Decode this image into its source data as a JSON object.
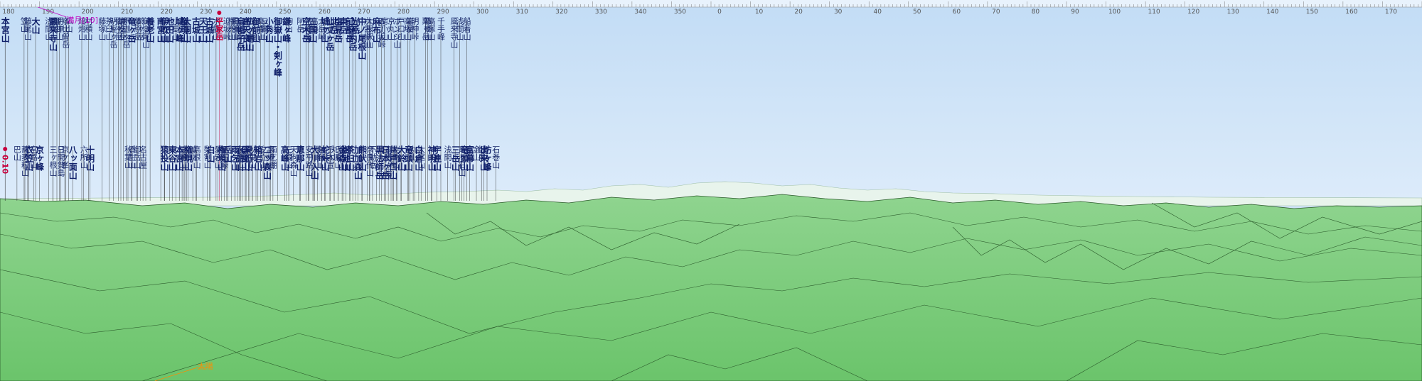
{
  "panorama": {
    "colors": {
      "sky_top": "#c2dcf5",
      "sky_bottom": "#dcebfa",
      "ground": "#6fc86f",
      "ground_far": "#a9ddb0",
      "ridge_line": "#2b5a2b",
      "leader_line": "#333333",
      "highlight": "#c8003c",
      "moon": "#c000c0",
      "sun": "#ff8a00"
    },
    "azimuth_ticks": [
      {
        "deg": 180,
        "label": "180"
      },
      {
        "deg": 190,
        "label": "190"
      },
      {
        "deg": 200,
        "label": "200"
      },
      {
        "deg": 210,
        "label": "210"
      },
      {
        "deg": 220,
        "label": "220"
      },
      {
        "deg": 230,
        "label": "230"
      },
      {
        "deg": 240,
        "label": "240"
      },
      {
        "deg": 250,
        "label": "250"
      },
      {
        "deg": 260,
        "label": "260"
      },
      {
        "deg": 270,
        "label": "270"
      },
      {
        "deg": 280,
        "label": "280"
      },
      {
        "deg": 290,
        "label": "290"
      },
      {
        "deg": 300,
        "label": "300"
      },
      {
        "deg": 310,
        "label": "310"
      },
      {
        "deg": 320,
        "label": "320"
      },
      {
        "deg": 330,
        "label": "330"
      },
      {
        "deg": 340,
        "label": "340"
      },
      {
        "deg": 350,
        "label": "350"
      },
      {
        "deg": 360,
        "label": "0"
      },
      {
        "deg": 370,
        "label": "10"
      },
      {
        "deg": 380,
        "label": "20"
      },
      {
        "deg": 390,
        "label": "30"
      },
      {
        "deg": 400,
        "label": "40"
      },
      {
        "deg": 410,
        "label": "50"
      },
      {
        "deg": 420,
        "label": "60"
      },
      {
        "deg": 430,
        "label": "70"
      },
      {
        "deg": 440,
        "label": "80"
      },
      {
        "deg": 450,
        "label": "90"
      },
      {
        "deg": 460,
        "label": "100"
      },
      {
        "deg": 470,
        "label": "110"
      },
      {
        "deg": 480,
        "label": "120"
      },
      {
        "deg": 490,
        "label": "130"
      },
      {
        "deg": 500,
        "label": "140"
      },
      {
        "deg": 510,
        "label": "150"
      },
      {
        "deg": 520,
        "label": "160"
      },
      {
        "deg": 530,
        "label": "170"
      }
    ],
    "peaks": [
      {
        "name": "本宮山",
        "deg": 181.3,
        "row": 0,
        "major": true
      },
      {
        "name": "巴山",
        "deg": 184.3,
        "row": 2
      },
      {
        "name": "笠山",
        "deg": 186.1,
        "row": 0
      },
      {
        "name": "藤尾山",
        "deg": 187.0,
        "row": 0
      },
      {
        "name": "蕎麦粒山",
        "deg": 186.3,
        "row": 2
      },
      {
        "name": "衣笠山",
        "deg": 187.3,
        "row": 2,
        "major": true
      },
      {
        "name": "宮路山",
        "deg": 188.5,
        "row": 2
      },
      {
        "name": "大山",
        "deg": 189.0,
        "row": 0,
        "major": true
      },
      {
        "name": "京ヶ峰",
        "deg": 190.0,
        "row": 2,
        "major": true
      },
      {
        "name": "浅間山",
        "deg": 192.3,
        "row": 0
      },
      {
        "name": "鳳来寺山",
        "deg": 193.4,
        "row": 0,
        "major": true
      },
      {
        "name": "三ヶ根山",
        "deg": 193.4,
        "row": 2
      },
      {
        "name": "棚山",
        "deg": 194.4,
        "row": 0
      },
      {
        "name": "明神山",
        "deg": 195.0,
        "row": 0
      },
      {
        "name": "日間賀島",
        "deg": 195.4,
        "row": 2
      },
      {
        "name": "京ヶ峯",
        "deg": 196.4,
        "row": 2
      },
      {
        "name": "寧比曽岳",
        "deg": 196.6,
        "row": 0
      },
      {
        "name": "仏山",
        "deg": 197.4,
        "row": 0
      },
      {
        "name": "八ッ面山",
        "deg": 198.4,
        "row": 2,
        "major": true
      },
      {
        "name": "焙烙山",
        "deg": 200.7,
        "row": 0
      },
      {
        "name": "六所山",
        "deg": 201.2,
        "row": 2
      },
      {
        "name": "村積山",
        "deg": 202.4,
        "row": 0
      },
      {
        "name": "十明山",
        "deg": 202.8,
        "row": 2,
        "major": true
      },
      {
        "name": "藤塚山",
        "deg": 205.8,
        "row": 0
      },
      {
        "name": "茶臼山",
        "deg": 207.6,
        "row": 0
      },
      {
        "name": "明屋ヶ岳",
        "deg": 208.7,
        "row": 0
      },
      {
        "name": "仙ヶ岳",
        "deg": 210.0,
        "row": 0
      },
      {
        "name": "猿投山",
        "deg": 210.6,
        "row": 0
      },
      {
        "name": "雨乞岳",
        "deg": 211.2,
        "row": 0
      },
      {
        "name": "釈迦ヶ岳",
        "deg": 212.0,
        "row": 0
      },
      {
        "name": "竜ヶ岳",
        "deg": 213.3,
        "row": 0,
        "major": true
      },
      {
        "name": "秋葉山",
        "deg": 212.4,
        "row": 2
      },
      {
        "name": "香生山",
        "deg": 213.4,
        "row": 2
      },
      {
        "name": "藤原岳",
        "deg": 214.8,
        "row": 0
      },
      {
        "name": "御岳山",
        "deg": 214.6,
        "row": 2
      },
      {
        "name": "鈴ヶ岳",
        "deg": 215.6,
        "row": 0
      },
      {
        "name": "名古屋",
        "deg": 216.2,
        "row": 2
      },
      {
        "name": "御嶽尾山",
        "deg": 216.9,
        "row": 0
      },
      {
        "name": "養老山",
        "deg": 218.0,
        "row": 0,
        "major": true
      },
      {
        "name": "南宮山",
        "deg": 220.7,
        "row": 0,
        "major": true
      },
      {
        "name": "伊吹山",
        "deg": 221.7,
        "row": 0,
        "major": true
      },
      {
        "name": "猿投山",
        "deg": 221.6,
        "row": 2,
        "major": true
      },
      {
        "name": "池田山",
        "deg": 222.9,
        "row": 0,
        "major": true
      },
      {
        "name": "東谷山",
        "deg": 223.6,
        "row": 2,
        "major": true
      },
      {
        "name": "小島山",
        "deg": 224.5,
        "row": 0
      },
      {
        "name": "城ヶ峰",
        "deg": 225.4,
        "row": 0,
        "major": true
      },
      {
        "name": "本宮山",
        "deg": 225.4,
        "row": 2,
        "major": true
      },
      {
        "name": "三国山",
        "deg": 226.1,
        "row": 2
      },
      {
        "name": "権現山",
        "deg": 226.6,
        "row": 0,
        "major": true
      },
      {
        "name": "大洞山",
        "deg": 227.3,
        "row": 0,
        "major": true
      },
      {
        "name": "各務山",
        "deg": 226.8,
        "row": 2
      },
      {
        "name": "権現山",
        "deg": 227.6,
        "row": 2,
        "major": true
      },
      {
        "name": "城山",
        "deg": 228.8,
        "row": 2
      },
      {
        "name": "古城山",
        "deg": 229.6,
        "row": 0,
        "major": true
      },
      {
        "name": "高根山",
        "deg": 229.8,
        "row": 2
      },
      {
        "name": "天王山",
        "deg": 231.4,
        "row": 0,
        "major": true
      },
      {
        "name": "梨割山",
        "deg": 232.5,
        "row": 2
      },
      {
        "name": "白山",
        "deg": 233.3,
        "row": 2,
        "major": true
      },
      {
        "name": "古城山",
        "deg": 233.0,
        "row": 0,
        "major": true
      },
      {
        "name": "水晶山",
        "deg": 234.7,
        "row": 0
      },
      {
        "name": "平家岳",
        "deg": 235.5,
        "row": 0,
        "highlight": true
      },
      {
        "name": "愛宕山",
        "deg": 235.2,
        "row": 2
      },
      {
        "name": "権現山",
        "deg": 236.1,
        "row": 2,
        "major": true
      },
      {
        "name": "柄石峠",
        "deg": 236.8,
        "row": 2
      },
      {
        "name": "迫坂峠",
        "deg": 237.4,
        "row": 0
      },
      {
        "name": "岳山",
        "deg": 237.7,
        "row": 2,
        "major": true
      },
      {
        "name": "権兜山",
        "deg": 238.6,
        "row": 0
      },
      {
        "name": "黒部山",
        "deg": 239.5,
        "row": 0
      },
      {
        "name": "雨乞山",
        "deg": 239.5,
        "row": 2,
        "major": true
      },
      {
        "name": "三段峠",
        "deg": 240.2,
        "row": 0
      },
      {
        "name": "烏帽子岳",
        "deg": 240.9,
        "row": 0,
        "major": true
      },
      {
        "name": "水晶山",
        "deg": 240.6,
        "row": 2,
        "major": true
      },
      {
        "name": "田代山",
        "deg": 241.3,
        "row": 2
      },
      {
        "name": "高天良山",
        "deg": 242.3,
        "row": 0,
        "major": true
      },
      {
        "name": "屏風山",
        "deg": 242.1,
        "row": 2,
        "major": true
      },
      {
        "name": "仏ヶ尾山",
        "deg": 243.2,
        "row": 0,
        "major": true
      },
      {
        "name": "見行山",
        "deg": 242.9,
        "row": 2,
        "major": true
      },
      {
        "name": "秋葉山",
        "deg": 243.9,
        "row": 2
      },
      {
        "name": "御前山",
        "deg": 244.8,
        "row": 0,
        "major": true
      },
      {
        "name": "笹ヶ峰",
        "deg": 243.9,
        "row": 0
      },
      {
        "name": "箱岩山",
        "deg": 245.3,
        "row": 2,
        "major": true
      },
      {
        "name": "高森山",
        "deg": 246.0,
        "row": 0
      },
      {
        "name": "夕立山",
        "deg": 246.6,
        "row": 2
      },
      {
        "name": "三国山",
        "deg": 246.9,
        "row": 0
      },
      {
        "name": "二ッ森山",
        "deg": 247.6,
        "row": 2,
        "major": true
      },
      {
        "name": "小秀山",
        "deg": 248.1,
        "row": 0,
        "major": true
      },
      {
        "name": "高根山",
        "deg": 248.5,
        "row": 2
      },
      {
        "name": "雨乞棚",
        "deg": 249.1,
        "row": 2
      },
      {
        "name": "御嶽山・剣ヶ峰",
        "deg": 250.3,
        "row": 0,
        "major": true
      },
      {
        "name": "高峰山",
        "deg": 252.1,
        "row": 2,
        "major": true
      },
      {
        "name": "鎌ヶ峰",
        "deg": 252.5,
        "row": 0,
        "major": true
      },
      {
        "name": "駒山",
        "deg": 253.1,
        "row": 0
      },
      {
        "name": "三森山",
        "deg": 253.1,
        "row": 2
      },
      {
        "name": "天狗森山",
        "deg": 254.3,
        "row": 2
      },
      {
        "name": "阿岳",
        "deg": 256.0,
        "row": 0
      },
      {
        "name": "恵那山",
        "deg": 256.0,
        "row": 2,
        "major": true
      },
      {
        "name": "焼山",
        "deg": 255.9,
        "row": 2
      },
      {
        "name": "荒峰岳",
        "deg": 258.0,
        "row": 0
      },
      {
        "name": "空木岳",
        "deg": 257.5,
        "row": 0,
        "major": true
      },
      {
        "name": "安平路山",
        "deg": 258.2,
        "row": 2
      },
      {
        "name": "三国山",
        "deg": 259.2,
        "row": 0,
        "major": true
      },
      {
        "name": "高嶺",
        "deg": 259.5,
        "row": 0
      },
      {
        "name": "大川入山",
        "deg": 259.6,
        "row": 2,
        "major": true
      },
      {
        "name": "長峰山",
        "deg": 260.4,
        "row": 2
      },
      {
        "name": "大岳峠",
        "deg": 261.4,
        "row": 0
      },
      {
        "name": "鉢伏山",
        "deg": 261.4,
        "row": 2
      },
      {
        "name": "城ヶ山",
        "deg": 262.2,
        "row": 0,
        "major": true
      },
      {
        "name": "蛇峠山",
        "deg": 262.3,
        "row": 2,
        "major": true
      },
      {
        "name": "仙丈ヶ岳",
        "deg": 263.5,
        "row": 0,
        "major": true
      },
      {
        "name": "千木宣",
        "deg": 263.6,
        "row": 2
      },
      {
        "name": "北岳",
        "deg": 264.6,
        "row": 0,
        "major": true
      },
      {
        "name": "丸山",
        "deg": 264.6,
        "row": 2
      },
      {
        "name": "塩見岳",
        "deg": 265.6,
        "row": 0,
        "major": true
      },
      {
        "name": "氏乗山",
        "deg": 265.6,
        "row": 2
      },
      {
        "name": "東岳",
        "deg": 266.9,
        "row": 0,
        "major": true
      },
      {
        "name": "金森山",
        "deg": 266.6,
        "row": 2,
        "major": true
      },
      {
        "name": "御池山",
        "deg": 267.6,
        "row": 2,
        "major": true
      },
      {
        "name": "前聖岳",
        "deg": 268.5,
        "row": 0,
        "major": true
      },
      {
        "name": "茶臼山",
        "deg": 268.6,
        "row": 2,
        "major": true
      },
      {
        "name": "上河内岳",
        "deg": 269.3,
        "row": 0,
        "major": true
      },
      {
        "name": "光岳",
        "deg": 270.0,
        "row": 0,
        "major": true
      },
      {
        "name": "加加森山",
        "deg": 270.6,
        "row": 2,
        "major": true
      },
      {
        "name": "中ノ尾根山",
        "deg": 271.6,
        "row": 0,
        "major": true
      },
      {
        "name": "熊伏山",
        "deg": 271.7,
        "row": 2,
        "major": true
      },
      {
        "name": "六呂場山",
        "deg": 273.0,
        "row": 0
      },
      {
        "name": "大根沢山",
        "deg": 273.5,
        "row": 0
      },
      {
        "name": "奈良代山",
        "deg": 273.6,
        "row": 2
      },
      {
        "name": "不動岳",
        "deg": 274.3,
        "row": 2
      },
      {
        "name": "麻布山",
        "deg": 275.3,
        "row": 0,
        "major": true
      },
      {
        "name": "黒法師岳",
        "deg": 276.0,
        "row": 2,
        "major": true
      },
      {
        "name": "五丁坂峠",
        "deg": 276.6,
        "row": 0
      },
      {
        "name": "房小山",
        "deg": 277.3,
        "row": 0
      },
      {
        "name": "日本ヶ岳",
        "deg": 277.6,
        "row": 2,
        "major": true
      },
      {
        "name": "竜馬ヶ岳",
        "deg": 278.3,
        "row": 2
      },
      {
        "name": "京丸山",
        "deg": 279.0,
        "row": 0
      },
      {
        "name": "井戸口山",
        "deg": 279.5,
        "row": 2,
        "major": true
      },
      {
        "name": "仏ヶ尾",
        "deg": 279.6,
        "row": 2
      },
      {
        "name": "ボンジ山",
        "deg": 280.5,
        "row": 0
      },
      {
        "name": "岩岳山",
        "deg": 280.3,
        "row": 2
      },
      {
        "name": "戸口山",
        "deg": 281.5,
        "row": 0
      },
      {
        "name": "大鈴山",
        "deg": 281.6,
        "row": 2,
        "major": true
      },
      {
        "name": "高塚山",
        "deg": 283.2,
        "row": 0
      },
      {
        "name": "竜頭山",
        "deg": 283.4,
        "row": 2,
        "major": true
      },
      {
        "name": "岩岳",
        "deg": 283.8,
        "row": 0
      },
      {
        "name": "丸山",
        "deg": 284.6,
        "row": 2
      },
      {
        "name": "明神峠",
        "deg": 285.0,
        "row": 0
      },
      {
        "name": "白倉山",
        "deg": 286.0,
        "row": 2,
        "major": true
      },
      {
        "name": "大尾山",
        "deg": 286.6,
        "row": 2
      },
      {
        "name": "栗ヶ岳",
        "deg": 287.7,
        "row": 0
      },
      {
        "name": "鞍掛山",
        "deg": 288.3,
        "row": 0
      },
      {
        "name": "高塚山",
        "deg": 289.2,
        "row": 0
      },
      {
        "name": "神明山",
        "deg": 289.3,
        "row": 2,
        "major": true
      },
      {
        "name": "宇連山",
        "deg": 290.6,
        "row": 2,
        "major": true
      },
      {
        "name": "千手峰",
        "deg": 291.6,
        "row": 0
      },
      {
        "name": "浅間山",
        "deg": 293.3,
        "row": 2
      },
      {
        "name": "風来寺山",
        "deg": 294.9,
        "row": 0
      },
      {
        "name": "三岳山",
        "deg": 295.3,
        "row": 2,
        "major": true
      },
      {
        "name": "浅間山",
        "deg": 296.4,
        "row": 0
      },
      {
        "name": "竜ヶ石山",
        "deg": 296.9,
        "row": 2
      },
      {
        "name": "竜頭山",
        "deg": 297.5,
        "row": 2,
        "major": true
      },
      {
        "name": "船着山",
        "deg": 298.2,
        "row": 0
      },
      {
        "name": "富幕山",
        "deg": 298.9,
        "row": 2,
        "major": true
      },
      {
        "name": "金山",
        "deg": 300.6,
        "row": 2
      },
      {
        "name": "御岳",
        "deg": 301.9,
        "row": 2
      },
      {
        "name": "出来山",
        "deg": 302.5,
        "row": 2,
        "major": true
      },
      {
        "name": "坊ヶ峰",
        "deg": 303.3,
        "row": 2,
        "major": true
      },
      {
        "name": "石巻山",
        "deg": 305.5,
        "row": 2
      }
    ],
    "moon_label": "満月[10]",
    "moon_deg": 196.8,
    "sun_label": "太陽",
    "sun_deg": 230.0,
    "observer_point_label": "0.10",
    "observer_point_deg": 181.3
  }
}
